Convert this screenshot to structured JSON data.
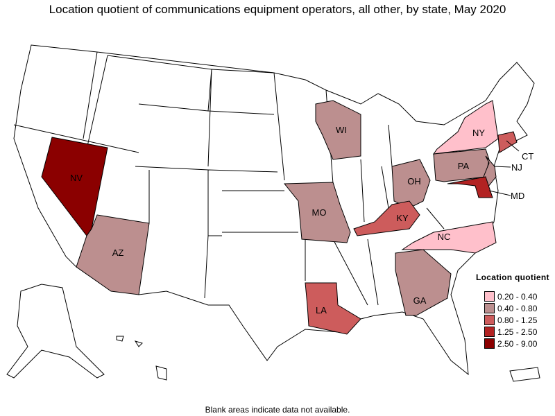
{
  "title": "Location quotient of communications equipment operators, all other, by state, May 2020",
  "footer": "Blank areas indicate data not available.",
  "legend": {
    "title": "Location quotient",
    "bins": [
      {
        "label": "0.20 - 0.40",
        "color": "#FFC0CB"
      },
      {
        "label": "0.40 - 0.80",
        "color": "#BC8F8F"
      },
      {
        "label": "0.80 - 1.25",
        "color": "#CD5C5C"
      },
      {
        "label": "1.25 - 2.50",
        "color": "#B22222"
      },
      {
        "label": "2.50 - 9.00",
        "color": "#8B0000"
      }
    ]
  },
  "states": {
    "NV": {
      "label": "NV",
      "bin": 4
    },
    "AZ": {
      "label": "AZ",
      "bin": 1
    },
    "WI": {
      "label": "WI",
      "bin": 1
    },
    "MO": {
      "label": "MO",
      "bin": 1
    },
    "OH": {
      "label": "OH",
      "bin": 1
    },
    "PA": {
      "label": "PA",
      "bin": 1
    },
    "NJ": {
      "label": "NJ",
      "bin": 1
    },
    "NY": {
      "label": "NY",
      "bin": 0
    },
    "CT": {
      "label": "CT",
      "bin": 2
    },
    "MD": {
      "label": "MD",
      "bin": 3
    },
    "KY": {
      "label": "KY",
      "bin": 2
    },
    "NC": {
      "label": "NC",
      "bin": 0
    },
    "GA": {
      "label": "GA",
      "bin": 1
    },
    "LA": {
      "label": "LA",
      "bin": 2
    }
  }
}
